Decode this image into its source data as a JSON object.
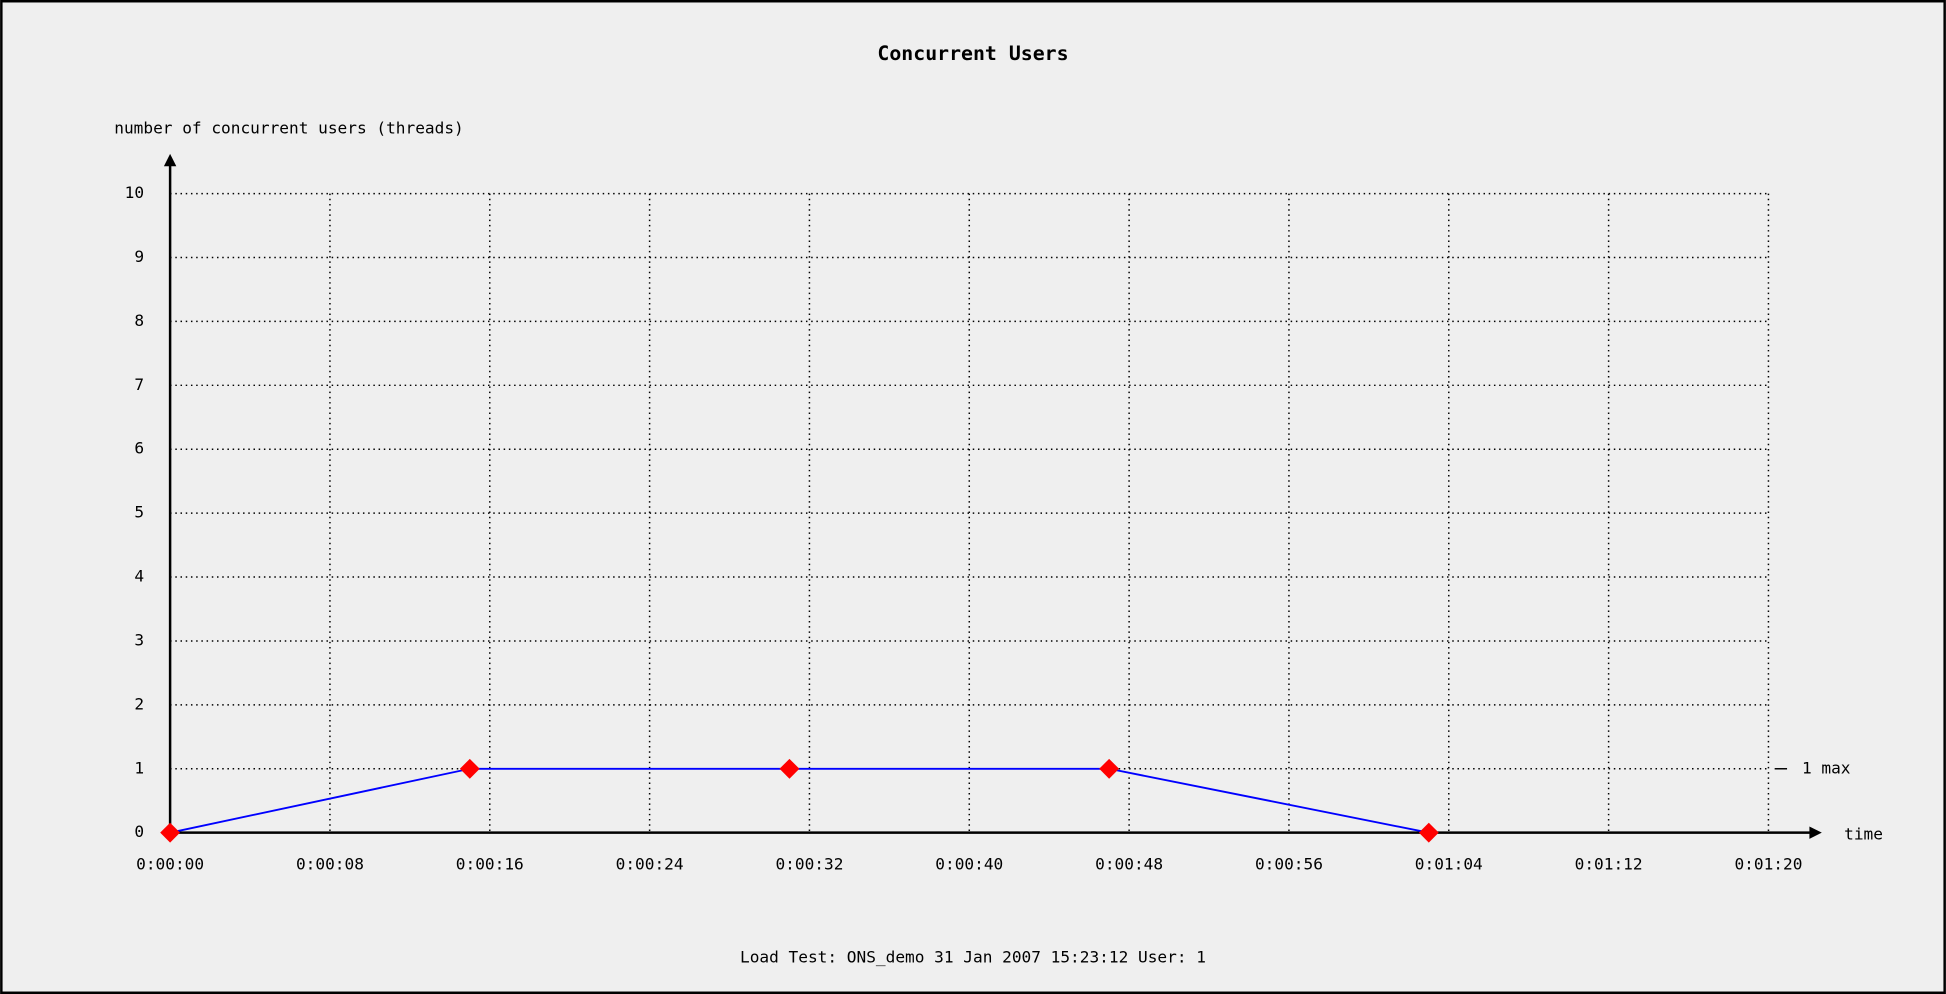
{
  "chart_data": {
    "type": "line",
    "title": "Concurrent Users",
    "y_label": "number of concurrent users (threads)",
    "x_label": "time",
    "annotation": "1 max",
    "footer": "Load Test: ONS_demo  31 Jan 2007 15:23:12  User: 1",
    "x": [
      0,
      15,
      31,
      47,
      63
    ],
    "series": [
      {
        "name": "concurrent users",
        "color": "#0000ff",
        "marker_color": "#ff0000",
        "values": [
          0,
          1,
          1,
          1,
          0
        ]
      }
    ],
    "xlim": [
      0,
      80
    ],
    "xticks": [
      {
        "value": 0,
        "label": "0:00:00"
      },
      {
        "value": 8,
        "label": "0:00:08"
      },
      {
        "value": 16,
        "label": "0:00:16"
      },
      {
        "value": 24,
        "label": "0:00:24"
      },
      {
        "value": 32,
        "label": "0:00:32"
      },
      {
        "value": 40,
        "label": "0:00:40"
      },
      {
        "value": 48,
        "label": "0:00:48"
      },
      {
        "value": 56,
        "label": "0:00:56"
      },
      {
        "value": 64,
        "label": "0:01:04"
      },
      {
        "value": 72,
        "label": "0:01:12"
      },
      {
        "value": 80,
        "label": "0:01:20"
      }
    ],
    "ylim": [
      0,
      10
    ],
    "yticks": [
      0,
      1,
      2,
      3,
      4,
      5,
      6,
      7,
      8,
      9,
      10
    ],
    "grid": true
  }
}
